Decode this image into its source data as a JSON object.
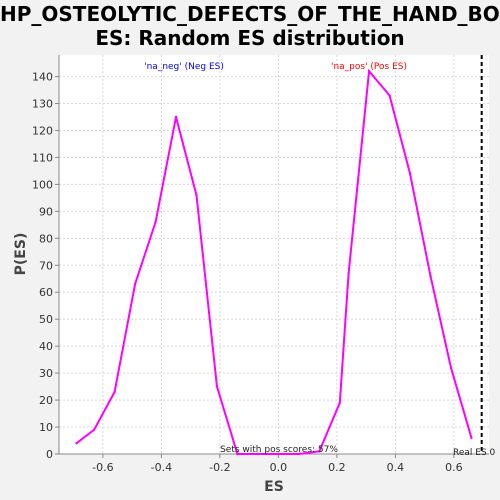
{
  "chart_data": {
    "type": "line",
    "title_line1": "HP_OSTEOLYTIC_DEFECTS_OF_THE_HAND_BON",
    "title_line2": "ES: Random ES distribution",
    "xlabel": "ES",
    "ylabel": "P(ES)",
    "xlim": [
      -0.75,
      0.72
    ],
    "ylim": [
      0,
      148
    ],
    "x_ticks": [
      -0.6,
      -0.4,
      -0.2,
      0.0,
      0.2,
      0.4,
      0.6
    ],
    "x_tick_labels": [
      "-0.6",
      "-0.4",
      "-0.2",
      "0.0",
      "0.2",
      "0.4",
      "0.6"
    ],
    "y_ticks": [
      0,
      10,
      20,
      30,
      40,
      50,
      60,
      70,
      80,
      90,
      100,
      110,
      120,
      130,
      140
    ],
    "y_tick_labels": [
      "0",
      "10",
      "20",
      "30",
      "40",
      "50",
      "60",
      "70",
      "80",
      "90",
      "100",
      "110",
      "120",
      "130",
      "140"
    ],
    "grid": true,
    "series": [
      {
        "color": "#ff00ff",
        "x": [
          -0.69,
          -0.63,
          -0.56,
          -0.49,
          -0.42,
          -0.35,
          -0.28,
          -0.21,
          -0.14,
          -0.07,
          0.0,
          0.07,
          0.14,
          0.21,
          0.24,
          0.31,
          0.38,
          0.45,
          0.52,
          0.59,
          0.66
        ],
        "y": [
          4,
          9,
          23,
          63,
          86,
          125,
          96,
          25,
          0,
          0,
          0,
          0,
          1,
          19,
          67,
          142,
          133,
          104,
          66,
          32,
          6
        ]
      }
    ],
    "annotations": {
      "neg_label": "'na_neg' (Neg ES)",
      "neg_color": "#0000ff",
      "pos_label": "'na_pos' (Pos ES)",
      "pos_color": "#ff0000",
      "sets_text": "Sets with pos scores: 57%",
      "real_es_label": "Real ES 0",
      "real_es_x": 0.695
    }
  }
}
